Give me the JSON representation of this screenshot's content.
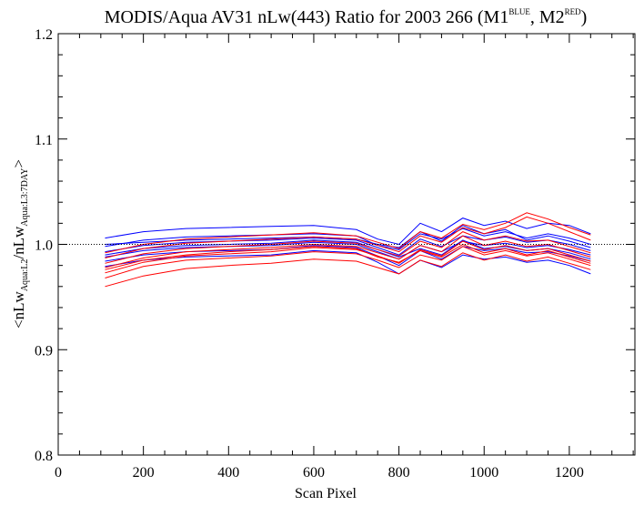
{
  "chart_data": {
    "type": "line",
    "title": {
      "main": "MODIS/Aqua AV31 nLw(443) Ratio for 2003 266 (M1",
      "sup1": "BLUE",
      "mid": ", M2",
      "sup2": "RED",
      "end": ")"
    },
    "xlabel": "Scan Pixel",
    "ylabel": {
      "prefix": "<nLw",
      "sub1": "Aqua:L2",
      "mid": "/nLw",
      "sub2": "Aqua:L3:7DAY",
      "suffix": ">"
    },
    "xlim": [
      0,
      1354
    ],
    "ylim": [
      0.8,
      1.2
    ],
    "x_ticks": [
      0,
      200,
      400,
      600,
      800,
      1000,
      1200
    ],
    "y_ticks": [
      0.8,
      0.9,
      1.0,
      1.1,
      1.2
    ],
    "x_tick_labels": [
      "0",
      "200",
      "400",
      "600",
      "800",
      "1000",
      "1200"
    ],
    "y_tick_labels": [
      "0.8",
      "0.9",
      "1.0",
      "1.1",
      "1.2"
    ],
    "reference_line": 1.0,
    "grid": false,
    "colors": {
      "M1": "#0000ff",
      "M2": "#ff0000",
      "reference": "#000000"
    },
    "x": [
      110,
      200,
      300,
      400,
      500,
      600,
      700,
      750,
      800,
      850,
      900,
      950,
      1000,
      1050,
      1100,
      1150,
      1200,
      1250
    ],
    "series": [
      {
        "group": "M1",
        "values": [
          1.006,
          1.012,
          1.015,
          1.016,
          1.017,
          1.018,
          1.014,
          1.005,
          1.0,
          1.02,
          1.012,
          1.025,
          1.018,
          1.022,
          1.015,
          1.02,
          1.018,
          1.01
        ]
      },
      {
        "group": "M1",
        "values": [
          0.998,
          1.004,
          1.007,
          1.008,
          1.009,
          1.01,
          1.008,
          0.999,
          0.995,
          1.01,
          1.005,
          1.015,
          1.008,
          1.012,
          1.006,
          1.01,
          1.006,
          1.0
        ]
      },
      {
        "group": "M1",
        "values": [
          0.993,
          0.999,
          1.002,
          1.003,
          1.004,
          1.006,
          1.004,
          0.997,
          0.99,
          1.005,
          0.998,
          1.008,
          1.004,
          1.007,
          1.002,
          1.004,
          1.0,
          0.994
        ]
      },
      {
        "group": "M1",
        "values": [
          0.988,
          0.994,
          0.997,
          0.998,
          0.999,
          1.002,
          1.0,
          0.993,
          0.986,
          0.999,
          0.993,
          1.003,
          0.999,
          1.001,
          0.997,
          0.999,
          0.995,
          0.99
        ]
      },
      {
        "group": "M1",
        "values": [
          0.984,
          0.99,
          0.993,
          0.994,
          0.995,
          0.999,
          0.997,
          0.989,
          0.98,
          0.994,
          0.986,
          0.998,
          0.994,
          0.996,
          0.992,
          0.993,
          0.989,
          0.984
        ]
      },
      {
        "group": "M1",
        "values": [
          0.979,
          0.985,
          0.988,
          0.989,
          0.99,
          0.994,
          0.992,
          0.983,
          0.972,
          0.985,
          0.978,
          0.99,
          0.986,
          0.988,
          0.983,
          0.985,
          0.98,
          0.972
        ]
      },
      {
        "group": "M1",
        "values": [
          1.0,
          1.002,
          1.004,
          1.005,
          1.006,
          1.007,
          1.005,
          1.0,
          0.997,
          1.012,
          1.003,
          1.018,
          1.01,
          1.014,
          1.004,
          1.008,
          1.003,
          0.997
        ]
      },
      {
        "group": "M1",
        "values": [
          0.99,
          0.996,
          0.999,
          1.0,
          1.001,
          1.004,
          1.002,
          0.995,
          0.988,
          0.996,
          0.99,
          1.004,
          0.996,
          0.998,
          0.994,
          0.996,
          0.992,
          0.986
        ]
      },
      {
        "group": "M2",
        "values": [
          0.96,
          0.97,
          0.977,
          0.98,
          0.982,
          0.986,
          0.984,
          0.978,
          0.972,
          0.985,
          0.979,
          0.992,
          0.985,
          0.99,
          0.984,
          0.988,
          0.982,
          0.976
        ]
      },
      {
        "group": "M2",
        "values": [
          0.968,
          0.979,
          0.985,
          0.987,
          0.989,
          0.993,
          0.991,
          0.985,
          0.978,
          0.99,
          0.985,
          0.998,
          0.99,
          0.994,
          0.989,
          0.992,
          0.986,
          0.98
        ]
      },
      {
        "group": "M2",
        "values": [
          0.973,
          0.983,
          0.989,
          0.991,
          0.993,
          0.997,
          0.995,
          0.989,
          0.982,
          0.995,
          0.989,
          1.003,
          0.995,
          0.999,
          0.994,
          0.996,
          0.99,
          0.984
        ]
      },
      {
        "group": "M2",
        "values": [
          0.978,
          0.987,
          0.993,
          0.995,
          0.997,
          1.0,
          0.998,
          0.992,
          0.986,
          0.999,
          0.993,
          1.008,
          0.999,
          1.003,
          0.998,
          1.0,
          0.994,
          0.988
        ]
      },
      {
        "group": "M2",
        "values": [
          0.982,
          0.991,
          0.996,
          0.998,
          1.0,
          1.003,
          1.001,
          0.995,
          0.989,
          1.003,
          0.997,
          1.012,
          1.004,
          1.008,
          1.003,
          1.004,
          0.998,
          0.992
        ]
      },
      {
        "group": "M2",
        "values": [
          0.987,
          0.996,
          1.001,
          1.003,
          1.005,
          1.007,
          1.005,
          0.999,
          0.993,
          1.008,
          1.002,
          1.016,
          1.01,
          1.016,
          1.026,
          1.02,
          1.012,
          1.004
        ]
      },
      {
        "group": "M2",
        "values": [
          0.992,
          1.0,
          1.005,
          1.007,
          1.009,
          1.011,
          1.008,
          1.002,
          0.996,
          1.012,
          1.006,
          1.019,
          1.014,
          1.02,
          1.03,
          1.024,
          1.016,
          1.009
        ]
      },
      {
        "group": "M2",
        "values": [
          0.976,
          0.985,
          0.99,
          0.993,
          0.995,
          0.998,
          0.996,
          0.988,
          0.983,
          0.994,
          0.988,
          1.0,
          0.992,
          0.996,
          0.99,
          0.994,
          0.988,
          0.982
        ]
      }
    ]
  }
}
